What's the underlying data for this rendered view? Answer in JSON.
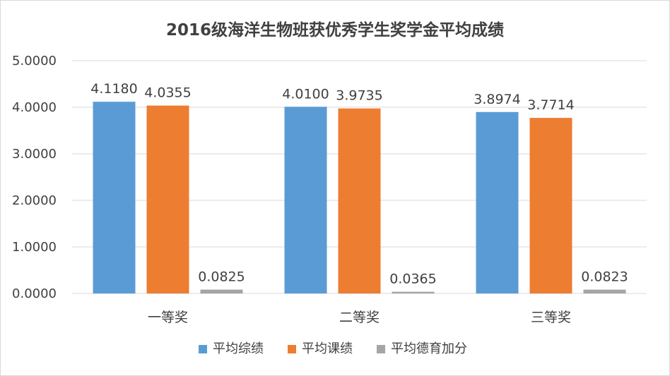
{
  "chart_data": {
    "type": "bar",
    "title": "2016级海洋生物班获优秀学生奖学金平均成绩",
    "categories": [
      "一等奖",
      "二等奖",
      "三等奖"
    ],
    "series": [
      {
        "name": "平均综绩",
        "values": [
          4.118,
          4.01,
          3.8974
        ],
        "labels": [
          "4.1180",
          "4.0100",
          "3.8974"
        ],
        "color": "#5b9bd5"
      },
      {
        "name": "平均课绩",
        "values": [
          4.0355,
          3.9735,
          3.7714
        ],
        "labels": [
          "4.0355",
          "3.9735",
          "3.7714"
        ],
        "color": "#ed7d31"
      },
      {
        "name": "平均德育加分",
        "values": [
          0.0825,
          0.0365,
          0.0823
        ],
        "labels": [
          "0.0825",
          "0.0365",
          "0.0823"
        ],
        "color": "#a5a5a5"
      }
    ],
    "yticks": [
      "0.0000",
      "1.0000",
      "2.0000",
      "3.0000",
      "4.0000",
      "5.0000"
    ],
    "ylim": [
      0,
      5
    ],
    "grid": true,
    "legend_position": "bottom"
  }
}
